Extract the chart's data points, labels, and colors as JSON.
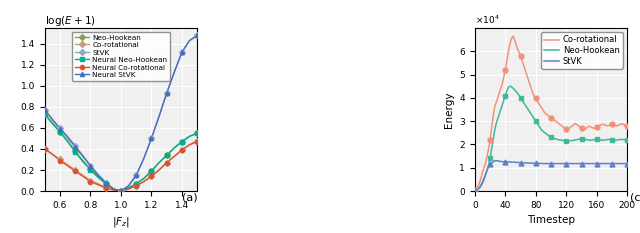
{
  "figure_width": 6.4,
  "figure_height": 2.33,
  "chart_a": {
    "title": "log(E + 1)",
    "xlabel": "|F_z|",
    "ylabel": "",
    "xlim": [
      0.5,
      1.5
    ],
    "ylim": [
      0.0,
      1.55
    ],
    "xticks": [
      0.6,
      0.8,
      1.0,
      1.2,
      1.4
    ],
    "yticks": [
      0.0,
      0.2,
      0.4,
      0.6,
      0.8,
      1.0,
      1.2,
      1.4
    ],
    "label_a": "(a)",
    "series": {
      "Neo-Hookean": {
        "color": "#7a9e3c",
        "marker": "D",
        "markersize": 3,
        "linewidth": 1.0,
        "linestyle": "-",
        "neural": false
      },
      "Co-rotational": {
        "color": "#c4956e",
        "marker": "D",
        "markersize": 3,
        "linewidth": 1.0,
        "linestyle": "-",
        "neural": false
      },
      "StVK": {
        "color": "#6fa8d6",
        "marker": "D",
        "markersize": 3,
        "linewidth": 1.0,
        "linestyle": "-",
        "neural": false
      },
      "Neural Neo-Hookean": {
        "color": "#00b8a0",
        "marker": "s",
        "markersize": 3,
        "linewidth": 1.2,
        "linestyle": "-",
        "neural": true
      },
      "Neural Co-rotational": {
        "color": "#e05a3a",
        "marker": "o",
        "markersize": 3,
        "linewidth": 1.2,
        "linestyle": "-",
        "neural": true
      },
      "Neural StVK": {
        "color": "#5a7fcf",
        "marker": "^",
        "markersize": 3,
        "linewidth": 1.5,
        "linestyle": "-",
        "neural": true
      }
    },
    "x_values": [
      0.5,
      0.55,
      0.6,
      0.65,
      0.7,
      0.75,
      0.8,
      0.85,
      0.9,
      0.95,
      1.0,
      1.05,
      1.1,
      1.15,
      1.2,
      1.25,
      1.3,
      1.35,
      1.4,
      1.45,
      1.5
    ],
    "neo_hookean_y": [
      0.73,
      0.65,
      0.56,
      0.48,
      0.38,
      0.29,
      0.21,
      0.14,
      0.07,
      0.02,
      0.0,
      0.03,
      0.07,
      0.12,
      0.19,
      0.27,
      0.34,
      0.41,
      0.47,
      0.52,
      0.55
    ],
    "co_rotational_y": [
      0.4,
      0.35,
      0.3,
      0.25,
      0.2,
      0.15,
      0.1,
      0.07,
      0.03,
      0.01,
      0.0,
      0.02,
      0.05,
      0.09,
      0.14,
      0.2,
      0.27,
      0.33,
      0.39,
      0.44,
      0.48
    ],
    "stvk_y": [
      0.77,
      0.68,
      0.6,
      0.52,
      0.43,
      0.34,
      0.24,
      0.16,
      0.08,
      0.02,
      0.0,
      0.05,
      0.15,
      0.31,
      0.5,
      0.71,
      0.93,
      1.13,
      1.32,
      1.43,
      1.48
    ],
    "neural_neo_hookean_y": [
      0.73,
      0.64,
      0.56,
      0.47,
      0.37,
      0.28,
      0.2,
      0.13,
      0.07,
      0.02,
      0.0,
      0.03,
      0.07,
      0.12,
      0.19,
      0.27,
      0.34,
      0.41,
      0.47,
      0.52,
      0.55
    ],
    "neural_co_rotational_y": [
      0.4,
      0.35,
      0.29,
      0.24,
      0.19,
      0.14,
      0.09,
      0.06,
      0.03,
      0.01,
      0.0,
      0.02,
      0.05,
      0.09,
      0.14,
      0.2,
      0.27,
      0.33,
      0.39,
      0.44,
      0.47
    ],
    "neural_stvk_y": [
      0.77,
      0.68,
      0.59,
      0.51,
      0.42,
      0.33,
      0.24,
      0.15,
      0.08,
      0.02,
      0.0,
      0.05,
      0.15,
      0.31,
      0.5,
      0.71,
      0.93,
      1.13,
      1.32,
      1.43,
      1.48
    ]
  },
  "chart_c": {
    "title": "",
    "xlabel": "Timestep",
    "ylabel": "Energy",
    "xlim": [
      0,
      200
    ],
    "ylim": [
      0,
      70000
    ],
    "xticks": [
      0,
      40,
      80,
      120,
      160,
      200
    ],
    "yticks": [
      0,
      10000,
      20000,
      30000,
      40000,
      50000,
      60000
    ],
    "yticklabels": [
      "0",
      "1",
      "2",
      "3",
      "4",
      "5",
      "6"
    ],
    "sci_exp": "x10^4",
    "label_c": "(c)",
    "series": {
      "Co-rotational": {
        "color": "#f4917a",
        "marker": "o",
        "markersize": 3,
        "linewidth": 1.2
      },
      "Neo-Hookean": {
        "color": "#4db8a0",
        "marker": "s",
        "markersize": 3,
        "linewidth": 1.2
      },
      "StVK": {
        "color": "#6090cc",
        "marker": "^",
        "markersize": 3,
        "linewidth": 1.2
      }
    },
    "timesteps": [
      0,
      2,
      4,
      6,
      8,
      10,
      12,
      14,
      16,
      18,
      20,
      22,
      24,
      26,
      28,
      30,
      32,
      34,
      36,
      38,
      40,
      42,
      44,
      46,
      48,
      50,
      52,
      54,
      56,
      58,
      60,
      62,
      64,
      66,
      68,
      70,
      72,
      74,
      76,
      78,
      80,
      82,
      84,
      86,
      88,
      90,
      92,
      94,
      96,
      98,
      100,
      102,
      104,
      106,
      108,
      110,
      112,
      114,
      116,
      118,
      120,
      122,
      124,
      126,
      128,
      130,
      132,
      134,
      136,
      138,
      140,
      142,
      144,
      146,
      148,
      150,
      152,
      154,
      156,
      158,
      160,
      162,
      164,
      166,
      168,
      170,
      172,
      174,
      176,
      178,
      180,
      182,
      184,
      186,
      188,
      190,
      192,
      194,
      196,
      198,
      200
    ],
    "co_rotational_energy": [
      500,
      1000,
      2000,
      3500,
      5500,
      8000,
      10000,
      12000,
      15000,
      18000,
      22000,
      27000,
      32000,
      36000,
      38000,
      40000,
      42000,
      44000,
      46000,
      49000,
      52000,
      56000,
      60000,
      63000,
      65500,
      66500,
      65000,
      63000,
      61000,
      59500,
      58000,
      56000,
      54000,
      52000,
      50000,
      48000,
      46000,
      44000,
      42000,
      40500,
      40000,
      38500,
      37500,
      36500,
      35500,
      34500,
      33500,
      33000,
      32500,
      32000,
      31500,
      31000,
      30500,
      30000,
      29500,
      29000,
      28500,
      28000,
      27500,
      27000,
      26500,
      26500,
      27000,
      27500,
      28000,
      28500,
      29000,
      28500,
      28000,
      27500,
      27000,
      26500,
      26500,
      27000,
      27500,
      27800,
      27500,
      27200,
      27000,
      27200,
      27500,
      27800,
      28200,
      28500,
      28700,
      28500,
      28200,
      28000,
      28200,
      28500,
      28700,
      28500,
      28200,
      28000,
      28200,
      28500,
      28700,
      28800,
      28500,
      28200,
      28000
    ],
    "neo_hookean_energy": [
      200,
      400,
      800,
      1500,
      2500,
      4000,
      5500,
      7000,
      9000,
      11000,
      14000,
      18000,
      22000,
      26000,
      29000,
      31000,
      33000,
      35000,
      37000,
      39000,
      41000,
      43000,
      44500,
      45000,
      44800,
      44200,
      43500,
      42800,
      42000,
      41000,
      40000,
      39000,
      38000,
      37000,
      36000,
      35000,
      34000,
      33000,
      32000,
      31000,
      30000,
      29000,
      28000,
      27000,
      26000,
      25500,
      25000,
      24500,
      24000,
      23500,
      23000,
      22800,
      22600,
      22400,
      22200,
      22000,
      21900,
      21800,
      21700,
      21600,
      21500,
      21400,
      21500,
      21600,
      21700,
      21800,
      22000,
      22100,
      22200,
      22300,
      22400,
      22300,
      22200,
      22100,
      22000,
      21900,
      21800,
      21900,
      22000,
      22100,
      22200,
      22100,
      22000,
      21900,
      21800,
      21900,
      22000,
      22100,
      22200,
      22100,
      22000,
      21900,
      21800,
      21900,
      22000,
      22100,
      22200,
      22100,
      22000,
      21900,
      22000
    ],
    "stvk_energy": [
      100,
      300,
      700,
      1300,
      2200,
      3500,
      5000,
      7000,
      9000,
      10500,
      11500,
      12000,
      12500,
      13000,
      13000,
      13000,
      12800,
      12700,
      12600,
      12600,
      12600,
      12600,
      12500,
      12500,
      12400,
      12400,
      12400,
      12300,
      12300,
      12200,
      12200,
      12200,
      12100,
      12100,
      12100,
      12000,
      12000,
      12000,
      11900,
      11900,
      11900,
      11900,
      11900,
      11900,
      11800,
      11800,
      11800,
      11800,
      11800,
      11800,
      11800,
      11800,
      11800,
      11800,
      11800,
      11800,
      11800,
      11800,
      11800,
      11800,
      11800,
      11800,
      11800,
      11800,
      11800,
      11800,
      11800,
      11800,
      11800,
      11800,
      11800,
      11800,
      11800,
      11800,
      11800,
      11800,
      11800,
      11800,
      11800,
      11800,
      11800,
      11800,
      11800,
      11800,
      11800,
      11800,
      11800,
      11800,
      11800,
      11800,
      11800,
      11800,
      11800,
      11800,
      11800,
      11800,
      11800,
      11800,
      11800,
      11800,
      11800
    ]
  },
  "background_color": "#f0f0f0",
  "grid_color": "white",
  "grid_linewidth": 0.8
}
